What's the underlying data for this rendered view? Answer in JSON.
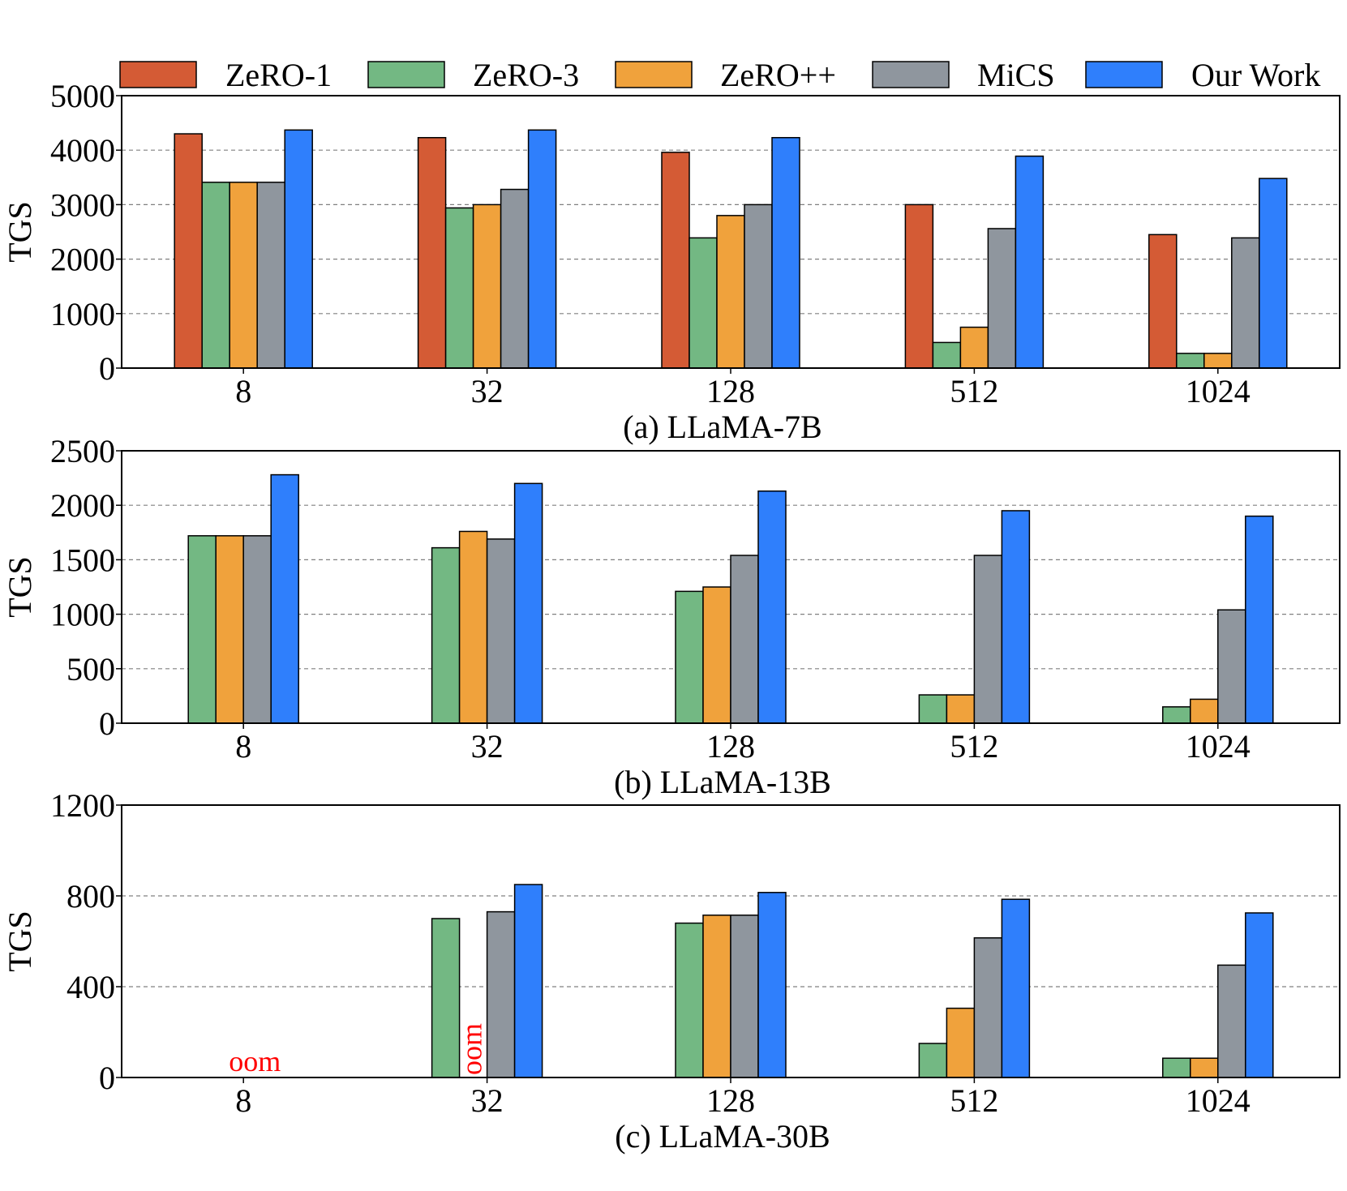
{
  "legend": [
    {
      "name": "ZeRO-1",
      "color": "#d45b35"
    },
    {
      "name": "ZeRO-3",
      "color": "#73b883"
    },
    {
      "name": "ZeRO++",
      "color": "#f0a23c"
    },
    {
      "name": "MiCS",
      "color": "#8f969e"
    },
    {
      "name": "Our Work",
      "color": "#2f7ffc"
    }
  ],
  "chart_data": [
    {
      "type": "bar",
      "title": "(a) LLaMA-7B",
      "ylabel": "TGS",
      "xlabel": "",
      "categories": [
        "8",
        "32",
        "128",
        "512",
        "1024"
      ],
      "ylim": [
        0,
        5000
      ],
      "yticks": [
        0,
        1000,
        2000,
        3000,
        4000,
        5000
      ],
      "grid": "y",
      "series": [
        {
          "name": "ZeRO-1",
          "values": [
            4300,
            4230,
            3960,
            3000,
            2450
          ]
        },
        {
          "name": "ZeRO-3",
          "values": [
            3410,
            2940,
            2390,
            470,
            270
          ]
        },
        {
          "name": "ZeRO++",
          "values": [
            3410,
            3000,
            2800,
            750,
            270
          ]
        },
        {
          "name": "MiCS",
          "values": [
            3410,
            3280,
            3000,
            2560,
            2390
          ]
        },
        {
          "name": "Our Work",
          "values": [
            4370,
            4370,
            4230,
            3890,
            3480
          ]
        }
      ],
      "annotations": []
    },
    {
      "type": "bar",
      "title": "(b) LLaMA-13B",
      "ylabel": "TGS",
      "xlabel": "",
      "categories": [
        "8",
        "32",
        "128",
        "512",
        "1024"
      ],
      "ylim": [
        0,
        2500
      ],
      "yticks": [
        0,
        500,
        1000,
        1500,
        2000,
        2500
      ],
      "grid": "y",
      "series": [
        {
          "name": "ZeRO-3",
          "values": [
            1720,
            1610,
            1210,
            260,
            150
          ]
        },
        {
          "name": "ZeRO++",
          "values": [
            1720,
            1760,
            1250,
            260,
            220
          ]
        },
        {
          "name": "MiCS",
          "values": [
            1720,
            1690,
            1540,
            1540,
            1040
          ]
        },
        {
          "name": "Our Work",
          "values": [
            2280,
            2200,
            2130,
            1950,
            1900
          ]
        }
      ],
      "annotations": []
    },
    {
      "type": "bar",
      "title": "(c) LLaMA-30B",
      "ylabel": "TGS",
      "xlabel": "",
      "categories": [
        "8",
        "32",
        "128",
        "512",
        "1024"
      ],
      "ylim": [
        0,
        1200
      ],
      "yticks": [
        0,
        400,
        800,
        1200
      ],
      "grid": "y",
      "series": [
        {
          "name": "ZeRO-3",
          "values": [
            null,
            700,
            680,
            150,
            85
          ]
        },
        {
          "name": "ZeRO++",
          "values": [
            null,
            null,
            715,
            305,
            85
          ]
        },
        {
          "name": "MiCS",
          "values": [
            null,
            730,
            715,
            615,
            495
          ]
        },
        {
          "name": "Our Work",
          "values": [
            null,
            850,
            815,
            785,
            725
          ]
        }
      ],
      "annotations": [
        {
          "text": "oom",
          "category": "8",
          "orientation": "horizontal"
        },
        {
          "text": "oom",
          "category": "32",
          "series": "ZeRO++",
          "orientation": "vertical"
        }
      ]
    }
  ]
}
